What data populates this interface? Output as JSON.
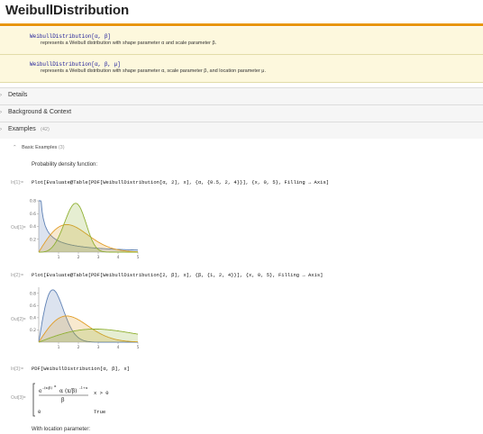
{
  "page": {
    "title": "WeibullDistribution"
  },
  "usage": [
    {
      "signature": "WeibullDistribution[α, β]",
      "description": "represents a Weibull distribution with shape parameter α and scale parameter β."
    },
    {
      "signature": "WeibullDistribution[α, β, μ]",
      "description": "represents a Weibull distribution with shape parameter α, scale parameter β, and location parameter μ."
    }
  ],
  "sections": {
    "details": "Details",
    "background": "Background & Context",
    "examples": "Examples",
    "examples_count": "(42)"
  },
  "basic_examples": {
    "label": "Basic Examples",
    "count": "(3)"
  },
  "text": {
    "pdf_intro": "Probability density function:",
    "location_intro": "With location parameter:"
  },
  "cells": [
    {
      "in_label": "In[1]:=",
      "code": "Plot[Evaluate@Table[PDF[WeibullDistribution[α, 2], x], {α, {0.5, 2, 4}}], {x, 0, 5}, Filling → Axis]",
      "out_label": "Out[1]="
    },
    {
      "in_label": "In[2]:=",
      "code": "Plot[Evaluate@Table[PDF[WeibullDistribution[2, β], x], {β, {1, 2, 4}}], {x, 0, 5}, Filling → Axis]",
      "out_label": "Out[2]="
    },
    {
      "in_label": "In[3]:=",
      "code": "PDF[WeibullDistribution[α, β], x]",
      "out_label": "Out[3]="
    }
  ],
  "piecewise": {
    "cond1": "x > 0",
    "val2": "0",
    "cond2": "True"
  },
  "colors": {
    "accent": "#e8960f",
    "series1": "#5e81b5",
    "series2": "#e19c24",
    "series3": "#8fb032"
  },
  "chart_data": [
    {
      "type": "area",
      "x": [
        0,
        5
      ],
      "ylim": [
        0,
        0.8
      ],
      "xticks": [
        "1",
        "2",
        "3",
        "4",
        "5"
      ],
      "yticks": [
        "0.2",
        "0.4",
        "0.6",
        "0.8"
      ],
      "series": [
        {
          "alpha": 0.5,
          "beta": 2
        },
        {
          "alpha": 2,
          "beta": 2
        },
        {
          "alpha": 4,
          "beta": 2
        }
      ]
    },
    {
      "type": "area",
      "x": [
        0,
        5
      ],
      "ylim": [
        0,
        0.9
      ],
      "xticks": [
        "1",
        "2",
        "3",
        "4",
        "5"
      ],
      "yticks": [
        "0.2",
        "0.4",
        "0.6",
        "0.8"
      ],
      "series": [
        {
          "alpha": 2,
          "beta": 1
        },
        {
          "alpha": 2,
          "beta": 2
        },
        {
          "alpha": 2,
          "beta": 4
        }
      ]
    }
  ]
}
